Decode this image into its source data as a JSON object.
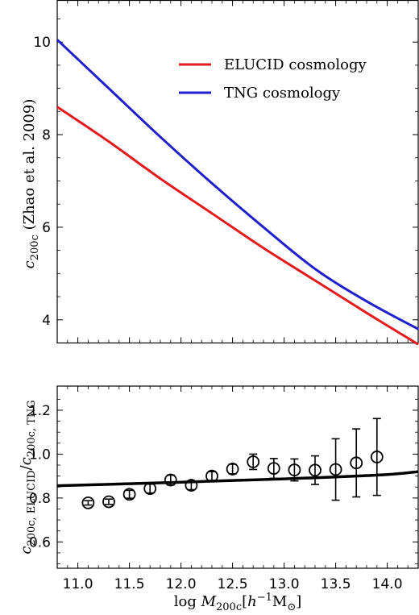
{
  "chart_data": [
    {
      "type": "line",
      "panel": "top",
      "ylabel": "c200c (Zhao et al. 2009)",
      "xlim": [
        10.8,
        14.3
      ],
      "ylim": [
        3.5,
        10.9
      ],
      "xticks": [
        11.0,
        11.5,
        12.0,
        12.5,
        13.0,
        13.5,
        14.0
      ],
      "yticks": [
        4,
        6,
        8,
        10
      ],
      "ytick_labels": [
        "4",
        "6",
        "8",
        "10"
      ],
      "legend_position": "upper-right",
      "series": [
        {
          "name": "ELUCID cosmology",
          "color": "#e31a1c",
          "x": [
            10.8,
            11.3,
            11.8,
            12.3,
            12.8,
            13.3,
            13.8,
            14.3
          ],
          "y": [
            8.6,
            7.85,
            7.05,
            6.3,
            5.55,
            4.85,
            4.15,
            3.47
          ]
        },
        {
          "name": "TNG cosmology",
          "color": "#1f1fcc",
          "x": [
            10.8,
            11.3,
            11.8,
            12.3,
            12.8,
            13.3,
            13.8,
            14.3
          ],
          "y": [
            10.05,
            9.0,
            7.95,
            6.95,
            6.0,
            5.1,
            4.4,
            3.8
          ]
        }
      ]
    },
    {
      "type": "scatter",
      "panel": "bottom",
      "xlabel": "log M200c [h^-1 M⊙]",
      "ylabel": "c200c, ELUCID / c200c, TNG",
      "xlim": [
        10.8,
        14.3
      ],
      "ylim": [
        0.48,
        1.31
      ],
      "xticks": [
        11.0,
        11.5,
        12.0,
        12.5,
        13.0,
        13.5,
        14.0
      ],
      "xtick_labels": [
        "11.0",
        "11.5",
        "12.0",
        "12.5",
        "13.0",
        "13.5",
        "14.0"
      ],
      "yticks": [
        0.6,
        0.8,
        1.0,
        1.2
      ],
      "ytick_labels": [
        "0.6",
        "0.8",
        "1.0",
        "1.2"
      ],
      "line": {
        "color": "#000000",
        "x": [
          10.8,
          11.5,
          12.0,
          12.5,
          13.0,
          13.5,
          14.0,
          14.3
        ],
        "y": [
          0.856,
          0.865,
          0.872,
          0.88,
          0.887,
          0.896,
          0.907,
          0.92
        ]
      },
      "points": {
        "x": [
          11.1,
          11.3,
          11.5,
          11.7,
          11.9,
          12.1,
          12.3,
          12.5,
          12.7,
          12.9,
          13.1,
          13.3,
          13.5,
          13.7,
          13.9
        ],
        "y": [
          0.778,
          0.783,
          0.817,
          0.843,
          0.882,
          0.858,
          0.9,
          0.932,
          0.965,
          0.935,
          0.928,
          0.927,
          0.93,
          0.96,
          0.987
        ],
        "err": [
          0.01,
          0.012,
          0.018,
          0.02,
          0.022,
          0.02,
          0.02,
          0.022,
          0.035,
          0.045,
          0.05,
          0.065,
          0.14,
          0.155,
          0.175
        ]
      }
    }
  ],
  "legend": {
    "items": [
      "ELUCID cosmology",
      "TNG cosmology"
    ]
  }
}
